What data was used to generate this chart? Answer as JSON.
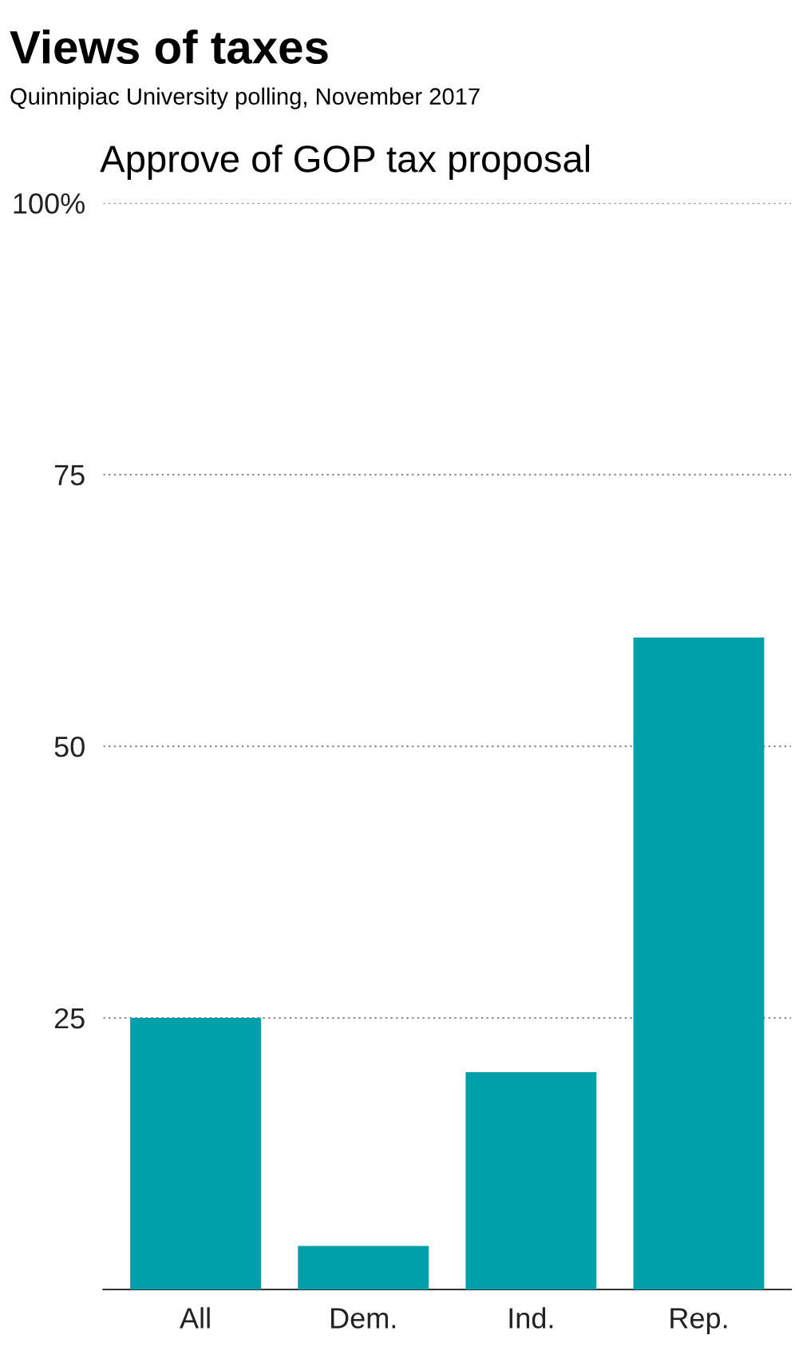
{
  "chart_data": {
    "type": "bar",
    "title": "Views of taxes",
    "subtitle": "Quinnipiac University polling, November 2017",
    "annotations": [
      "Approve of GOP tax proposal"
    ],
    "categories": [
      "All",
      "Dem.",
      "Ind.",
      "Rep."
    ],
    "values": [
      25,
      4,
      20,
      60
    ],
    "color": "#00a0ab",
    "ylim": [
      0,
      100
    ],
    "yticks": [
      25,
      50,
      75,
      {
        "value": 100,
        "label": "100%"
      }
    ],
    "grid": "y"
  }
}
